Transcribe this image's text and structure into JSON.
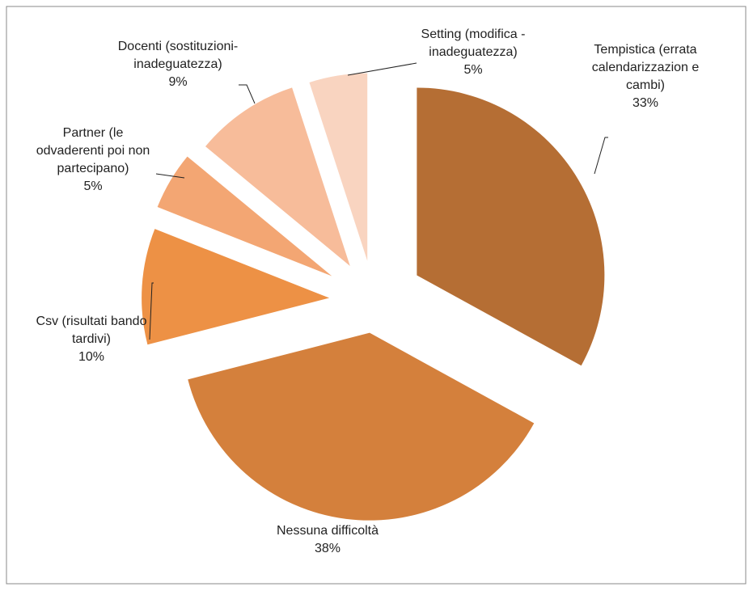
{
  "chart_data": {
    "type": "pie",
    "categories": [
      "Tempistica (errata calendarizzazion e cambi)",
      "Nessuna difficoltà",
      "Csv (risultati bando tardivi)",
      "Partner (le odvaderenti poi non partecipano)",
      "Docenti (sostituzioni- inadeguatezza)",
      "Setting (modifica - inadeguatezza)"
    ],
    "values": [
      33,
      38,
      10,
      5,
      9,
      5
    ],
    "value_labels": [
      "33%",
      "38%",
      "10%",
      "5%",
      "9%",
      "5%"
    ],
    "colors": [
      "#b56e34",
      "#d4803c",
      "#ed9145",
      "#f3a673",
      "#f7bc9a",
      "#f9d4c0"
    ]
  }
}
